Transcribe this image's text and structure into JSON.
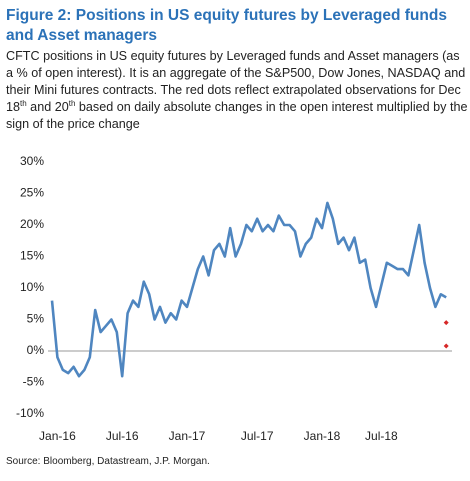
{
  "chart_data": {
    "type": "line",
    "title": "Figure 2: Positions in US equity futures by Leveraged funds and Asset managers",
    "subtitle": [
      "CFTC positions in US equity futures by Leveraged funds and Asset managers (as a % of open interest). It is an aggregate of the S&P500, Dow Jones, NASDAQ and their Mini futures contracts. The red dots reflect extrapolated observations for Dec 18",
      "th",
      " and 20",
      "th",
      " based on daily absolute changes in the open interest multiplied by the sign of the price change"
    ],
    "source": "Source: Bloomberg, Datastream, J.P. Morgan.",
    "categories": [
      null,
      "Jan-16",
      null,
      null,
      null,
      null,
      null,
      null,
      null,
      null,
      null,
      null,
      null,
      "Jul-16",
      null,
      null,
      null,
      null,
      null,
      null,
      null,
      null,
      null,
      null,
      null,
      "Jan-17",
      null,
      null,
      null,
      null,
      null,
      null,
      null,
      null,
      null,
      null,
      null,
      null,
      "Jul-17",
      null,
      null,
      null,
      null,
      null,
      null,
      null,
      null,
      null,
      null,
      null,
      "Jan-18",
      null,
      null,
      null,
      null,
      null,
      null,
      null,
      null,
      null,
      null,
      "Jul-18",
      null,
      null,
      null,
      null,
      null,
      null,
      null,
      null,
      null,
      null,
      null,
      null
    ],
    "series": [
      {
        "color": "#4f86c0",
        "values": [
          8,
          -1,
          -3,
          -3.5,
          -2.5,
          -4,
          -3,
          -1,
          6.5,
          3,
          4,
          5,
          3,
          -4,
          6,
          8,
          7,
          11,
          9,
          5,
          7,
          4.5,
          6,
          5,
          8,
          7,
          10,
          13,
          15,
          12,
          16,
          17,
          15,
          19.5,
          15,
          17,
          20,
          19,
          21,
          19,
          20,
          19,
          21.5,
          20,
          20,
          19,
          15,
          17,
          18,
          21,
          19.5,
          23.5,
          21,
          17,
          18,
          16,
          18,
          14,
          14.5,
          10,
          7,
          10.5,
          14,
          13.5,
          13,
          13,
          12,
          16,
          20,
          14,
          10,
          7,
          9,
          8.5
        ]
      },
      {
        "color": "#d62828",
        "marker": "diamond",
        "values": [
          null,
          null,
          null,
          null,
          null,
          null,
          null,
          null,
          null,
          null,
          null,
          null,
          null,
          null,
          null,
          null,
          null,
          null,
          null,
          null,
          null,
          null,
          null,
          null,
          null,
          null,
          null,
          null,
          null,
          null,
          null,
          null,
          null,
          null,
          null,
          null,
          null,
          null,
          null,
          null,
          null,
          null,
          null,
          null,
          null,
          null,
          null,
          null,
          null,
          null,
          null,
          null,
          null,
          null,
          null,
          null,
          null,
          null,
          null,
          null,
          null,
          null,
          null,
          null,
          null,
          null,
          null,
          null,
          null,
          null,
          null,
          null,
          null,
          4.5
        ]
      },
      {
        "color": "#d62828",
        "marker": "diamond",
        "values": [
          null,
          null,
          null,
          null,
          null,
          null,
          null,
          null,
          null,
          null,
          null,
          null,
          null,
          null,
          null,
          null,
          null,
          null,
          null,
          null,
          null,
          null,
          null,
          null,
          null,
          null,
          null,
          null,
          null,
          null,
          null,
          null,
          null,
          null,
          null,
          null,
          null,
          null,
          null,
          null,
          null,
          null,
          null,
          null,
          null,
          null,
          null,
          null,
          null,
          null,
          null,
          null,
          null,
          null,
          null,
          null,
          null,
          null,
          null,
          null,
          null,
          null,
          null,
          null,
          null,
          null,
          null,
          null,
          null,
          null,
          null,
          null,
          null,
          0.8
        ]
      }
    ],
    "ylim": [
      -10,
      30
    ],
    "yticks": [
      {
        "value": -10,
        "label": "-10%"
      },
      {
        "value": -5,
        "label": "-5%"
      },
      {
        "value": 0,
        "label": "0%"
      },
      {
        "value": 5,
        "label": "5%"
      },
      {
        "value": 10,
        "label": "10%"
      },
      {
        "value": 15,
        "label": "15%"
      },
      {
        "value": 20,
        "label": "20%"
      },
      {
        "value": 25,
        "label": "25%"
      },
      {
        "value": 30,
        "label": "30%"
      }
    ],
    "grid": false
  }
}
